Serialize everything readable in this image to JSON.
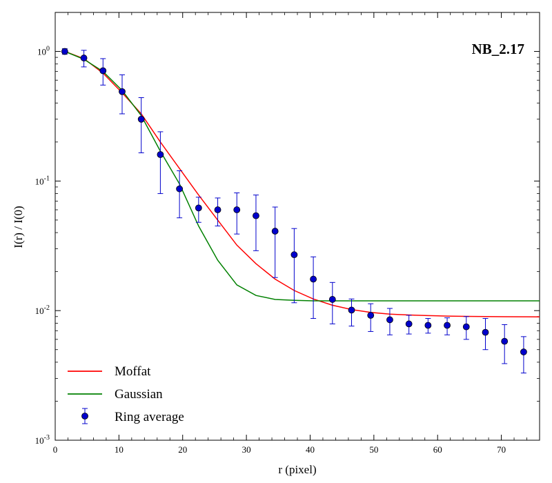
{
  "chart_data": {
    "type": "line",
    "panel_label": "NB_2.17",
    "xlabel": "r (pixel)",
    "ylabel": "I(r) / I(0)",
    "xlim": [
      0,
      76
    ],
    "ylim": [
      0.001,
      2
    ],
    "yscale": "log",
    "xticks": [
      0,
      10,
      20,
      30,
      40,
      50,
      60,
      70
    ],
    "yticks": [
      {
        "value": 1,
        "base": "10",
        "exp": "0"
      },
      {
        "value": 0.1,
        "base": "10",
        "exp": "-1"
      },
      {
        "value": 0.01,
        "base": "10",
        "exp": "-2"
      },
      {
        "value": 0.001,
        "base": "10",
        "exp": "-3"
      }
    ],
    "legend_position": "bottom-left",
    "series": [
      {
        "name": "Moffat",
        "kind": "line",
        "color": "#ff0000",
        "x": [
          1.5,
          4.5,
          7.5,
          10.5,
          13.5,
          16.5,
          19.5,
          22.5,
          25.5,
          28.5,
          31.5,
          34.5,
          37.5,
          40.5,
          43.5,
          46.5,
          49.5,
          52.5,
          55.5,
          58.5,
          61.5,
          64.5,
          67.5,
          70.5,
          73.5,
          76
        ],
        "y": [
          1.0,
          0.88,
          0.68,
          0.48,
          0.33,
          0.2,
          0.125,
          0.078,
          0.05,
          0.032,
          0.023,
          0.0175,
          0.0143,
          0.0123,
          0.011,
          0.0102,
          0.0097,
          0.0094,
          0.00925,
          0.00915,
          0.00908,
          0.00903,
          0.009,
          0.00898,
          0.00896,
          0.00895
        ]
      },
      {
        "name": "Gaussian",
        "kind": "line",
        "color": "#008000",
        "x": [
          1.5,
          4.5,
          7.5,
          10.5,
          13.5,
          16.5,
          19.5,
          22.5,
          25.5,
          28.5,
          31.5,
          34.5,
          37.5,
          40.5,
          43.5,
          46.5,
          76
        ],
        "y": [
          1.0,
          0.87,
          0.7,
          0.5,
          0.32,
          0.17,
          0.095,
          0.045,
          0.0245,
          0.0158,
          0.0131,
          0.0122,
          0.012,
          0.0119,
          0.0119,
          0.0119,
          0.0119
        ]
      },
      {
        "name": "Ring average",
        "kind": "errorbar",
        "color": "#0000cc",
        "x": [
          1.5,
          4.5,
          7.5,
          10.5,
          13.5,
          16.5,
          19.5,
          22.5,
          25.5,
          28.5,
          31.5,
          34.5,
          37.5,
          40.5,
          43.5,
          46.5,
          49.5,
          52.5,
          55.5,
          58.5,
          61.5,
          64.5,
          67.5,
          70.5,
          73.5
        ],
        "y": [
          1.0,
          0.89,
          0.71,
          0.49,
          0.3,
          0.16,
          0.087,
          0.062,
          0.06,
          0.06,
          0.054,
          0.041,
          0.027,
          0.0175,
          0.0122,
          0.0101,
          0.0092,
          0.0085,
          0.0079,
          0.0077,
          0.0077,
          0.0075,
          0.0068,
          0.0058,
          0.0048
        ],
        "yerr_low": [
          0.95,
          0.76,
          0.55,
          0.33,
          0.165,
          0.08,
          0.052,
          0.048,
          0.045,
          0.039,
          0.029,
          0.018,
          0.0115,
          0.0087,
          0.0079,
          0.0076,
          0.0069,
          0.0065,
          0.0066,
          0.0067,
          0.0065,
          0.006,
          0.005,
          0.0039,
          0.0033
        ],
        "yerr_high": [
          1.05,
          1.02,
          0.88,
          0.66,
          0.44,
          0.24,
          0.12,
          0.075,
          0.074,
          0.081,
          0.078,
          0.063,
          0.043,
          0.026,
          0.0165,
          0.0123,
          0.0113,
          0.0104,
          0.0092,
          0.0087,
          0.0088,
          0.009,
          0.0087,
          0.0078,
          0.0063
        ]
      }
    ]
  }
}
